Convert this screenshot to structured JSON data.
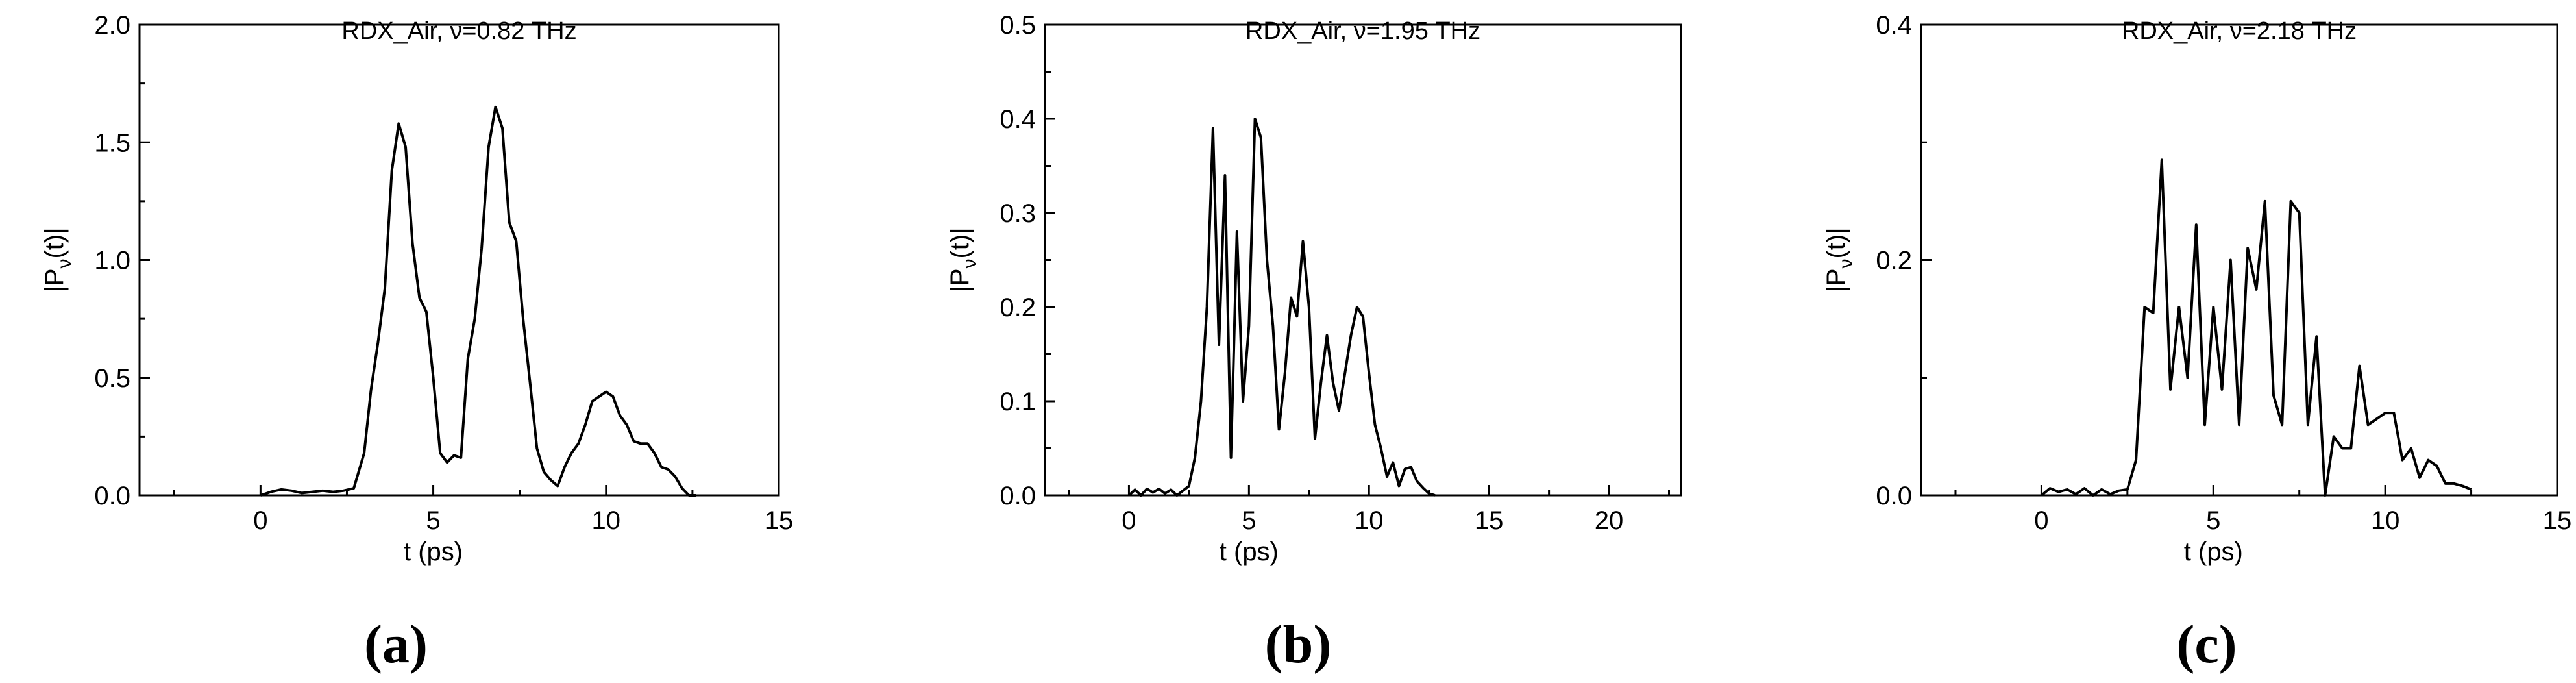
{
  "figure": {
    "panel_labels": [
      "(a)",
      "(b)",
      "(c)"
    ]
  },
  "chart_data": [
    {
      "type": "line",
      "title": "RDX_Air,  ν=0.82 THz",
      "xlabel": "t (ps)",
      "ylabel_main": "|P",
      "ylabel_sub": "ν",
      "ylabel_tail": "(t)|",
      "xlim": [
        -3.5,
        15
      ],
      "ylim": [
        0,
        2.0
      ],
      "xticks": [
        0,
        5,
        10,
        15
      ],
      "yticks": [
        0.0,
        0.5,
        1.0,
        1.5,
        2.0
      ],
      "xtick_labels": [
        "0",
        "5",
        "10",
        "15"
      ],
      "ytick_labels": [
        "0.0",
        "0.5",
        "1.0",
        "1.5",
        "2.0"
      ],
      "x": [
        0,
        0.3,
        0.6,
        0.9,
        1.2,
        1.5,
        1.8,
        2.1,
        2.4,
        2.7,
        3.0,
        3.2,
        3.4,
        3.6,
        3.8,
        4.0,
        4.2,
        4.4,
        4.6,
        4.8,
        5.0,
        5.2,
        5.4,
        5.6,
        5.8,
        6.0,
        6.2,
        6.4,
        6.6,
        6.8,
        7.0,
        7.2,
        7.4,
        7.6,
        7.8,
        8.0,
        8.2,
        8.4,
        8.6,
        8.8,
        9.0,
        9.2,
        9.4,
        9.6,
        9.8,
        10.0,
        10.2,
        10.4,
        10.6,
        10.8,
        11.0,
        11.2,
        11.4,
        11.6,
        11.8,
        12.0,
        12.2,
        12.4,
        12.6
      ],
      "y": [
        0.0,
        0.015,
        0.025,
        0.02,
        0.01,
        0.015,
        0.02,
        0.015,
        0.02,
        0.03,
        0.18,
        0.45,
        0.65,
        0.88,
        1.38,
        1.58,
        1.48,
        1.07,
        0.84,
        0.78,
        0.5,
        0.18,
        0.14,
        0.17,
        0.16,
        0.58,
        0.75,
        1.05,
        1.48,
        1.65,
        1.56,
        1.16,
        1.08,
        0.75,
        0.48,
        0.2,
        0.1,
        0.065,
        0.04,
        0.12,
        0.18,
        0.22,
        0.3,
        0.4,
        0.42,
        0.44,
        0.42,
        0.34,
        0.3,
        0.23,
        0.22,
        0.22,
        0.18,
        0.12,
        0.11,
        0.08,
        0.03,
        0.0,
        0.0
      ]
    },
    {
      "type": "line",
      "title": "RDX_Air,  ν=1.95 THz",
      "xlabel": "t (ps)",
      "ylabel_main": "|P",
      "ylabel_sub": "ν",
      "ylabel_tail": "(t)|",
      "xlim": [
        -3.5,
        23
      ],
      "ylim": [
        0,
        0.5
      ],
      "xticks": [
        0,
        5,
        10,
        15,
        20
      ],
      "yticks": [
        0.0,
        0.1,
        0.2,
        0.3,
        0.4,
        0.5
      ],
      "xtick_labels": [
        "0",
        "5",
        "10",
        "15",
        "20"
      ],
      "ytick_labels": [
        "0.0",
        "0.1",
        "0.2",
        "0.3",
        "0.4",
        "0.5"
      ],
      "x": [
        0,
        0.25,
        0.5,
        0.75,
        1.0,
        1.25,
        1.5,
        1.75,
        2.0,
        2.25,
        2.5,
        2.75,
        3.0,
        3.25,
        3.5,
        3.75,
        4.0,
        4.25,
        4.5,
        4.75,
        5.0,
        5.25,
        5.5,
        5.75,
        6.0,
        6.25,
        6.5,
        6.75,
        7.0,
        7.25,
        7.5,
        7.75,
        8.0,
        8.25,
        8.5,
        8.75,
        9.0,
        9.25,
        9.5,
        9.75,
        10.0,
        10.25,
        10.5,
        10.75,
        11.0,
        11.25,
        11.5,
        11.75,
        12.0,
        12.25,
        12.5,
        12.75
      ],
      "y": [
        0.0,
        0.006,
        0.0,
        0.007,
        0.003,
        0.007,
        0.002,
        0.006,
        0.0,
        0.005,
        0.01,
        0.04,
        0.1,
        0.2,
        0.39,
        0.16,
        0.34,
        0.04,
        0.28,
        0.1,
        0.18,
        0.4,
        0.38,
        0.25,
        0.18,
        0.07,
        0.13,
        0.21,
        0.19,
        0.27,
        0.2,
        0.06,
        0.12,
        0.17,
        0.12,
        0.09,
        0.13,
        0.17,
        0.2,
        0.19,
        0.13,
        0.075,
        0.05,
        0.02,
        0.035,
        0.01,
        0.028,
        0.03,
        0.015,
        0.008,
        0.002,
        0.0
      ]
    },
    {
      "type": "line",
      "title": "RDX_Air,  ν=2.18 THz",
      "xlabel": "t (ps)",
      "ylabel_main": "|P",
      "ylabel_sub": "ν",
      "ylabel_tail": "(t)|",
      "xlim": [
        -3.5,
        15
      ],
      "ylim": [
        0,
        0.4
      ],
      "xticks": [
        0,
        5,
        10,
        15
      ],
      "yticks": [
        0.0,
        0.2,
        0.4
      ],
      "xtick_labels": [
        "0",
        "5",
        "10",
        "15"
      ],
      "ytick_labels": [
        "0.0",
        "0.2",
        "0.4"
      ],
      "x": [
        0,
        0.25,
        0.5,
        0.75,
        1.0,
        1.25,
        1.5,
        1.75,
        2.0,
        2.25,
        2.5,
        2.75,
        3.0,
        3.25,
        3.5,
        3.75,
        4.0,
        4.25,
        4.5,
        4.75,
        5.0,
        5.25,
        5.5,
        5.75,
        6.0,
        6.25,
        6.5,
        6.75,
        7.0,
        7.25,
        7.5,
        7.75,
        8.0,
        8.25,
        8.5,
        8.75,
        9.0,
        9.25,
        9.5,
        9.75,
        10.0,
        10.25,
        10.5,
        10.75,
        11.0,
        11.25,
        11.5,
        11.75,
        12.0,
        12.25,
        12.5
      ],
      "y": [
        0.0,
        0.006,
        0.003,
        0.005,
        0.001,
        0.006,
        0.0,
        0.005,
        0.001,
        0.004,
        0.005,
        0.03,
        0.16,
        0.155,
        0.285,
        0.09,
        0.16,
        0.1,
        0.23,
        0.06,
        0.16,
        0.09,
        0.2,
        0.06,
        0.21,
        0.175,
        0.25,
        0.085,
        0.06,
        0.25,
        0.24,
        0.06,
        0.135,
        0.0,
        0.05,
        0.04,
        0.04,
        0.11,
        0.06,
        0.065,
        0.07,
        0.07,
        0.03,
        0.04,
        0.015,
        0.03,
        0.025,
        0.01,
        0.01,
        0.008,
        0.005
      ]
    }
  ]
}
